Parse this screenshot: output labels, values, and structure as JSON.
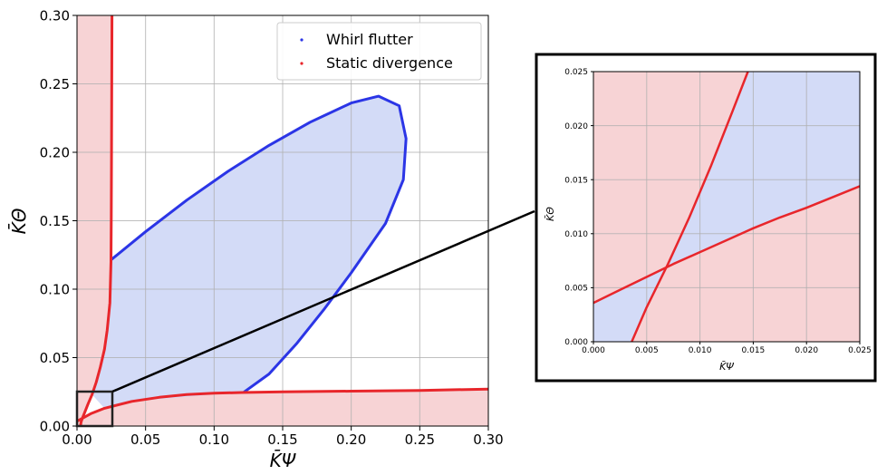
{
  "chart_data": [
    {
      "type": "scatter",
      "xlabel": "K̄Ψ",
      "ylabel": "K̄Θ",
      "xlim": [
        0,
        0.3
      ],
      "ylim": [
        0,
        0.3
      ],
      "xticks": [
        "0.00",
        "0.05",
        "0.10",
        "0.15",
        "0.20",
        "0.25",
        "0.30"
      ],
      "yticks": [
        "0.00",
        "0.05",
        "0.10",
        "0.15",
        "0.20",
        "0.25",
        "0.30"
      ],
      "grid": true,
      "legend_position": "top-right",
      "legend": [
        "Whirl flutter",
        "Static divergence"
      ],
      "colors": {
        "whirl": "#2b35e6",
        "whirl_fill": "#d3dbf7",
        "divergence": "#e8262b",
        "divergence_fill": "#f7d3d5"
      },
      "series": [
        {
          "name": "Whirl flutter",
          "x": [
            0.0255,
            0.05,
            0.08,
            0.11,
            0.14,
            0.17,
            0.2,
            0.22,
            0.235,
            0.24,
            0.238,
            0.225,
            0.2,
            0.18,
            0.16,
            0.14,
            0.122
          ],
          "y": [
            0.122,
            0.142,
            0.165,
            0.186,
            0.205,
            0.222,
            0.236,
            0.241,
            0.234,
            0.21,
            0.18,
            0.148,
            0.112,
            0.085,
            0.06,
            0.038,
            0.025
          ]
        },
        {
          "name": "Static divergence",
          "x": [
            0.0255,
            0.0254,
            0.0252,
            0.025,
            0.0248,
            0.024,
            0.022,
            0.02,
            0.017,
            0.014,
            0.011,
            0.008,
            0.006,
            0.004,
            0.003,
            0.0025
          ],
          "y": [
            0.3,
            0.26,
            0.2,
            0.15,
            0.12,
            0.09,
            0.07,
            0.056,
            0.043,
            0.032,
            0.023,
            0.016,
            0.011,
            0.006,
            0.003,
            0.0
          ]
        },
        {
          "name": "Static divergence",
          "x": [
            0.0,
            0.01,
            0.02,
            0.04,
            0.06,
            0.08,
            0.1,
            0.12,
            0.15,
            0.2,
            0.25,
            0.3
          ],
          "y": [
            0.0035,
            0.009,
            0.013,
            0.018,
            0.021,
            0.023,
            0.024,
            0.0245,
            0.025,
            0.0255,
            0.026,
            0.027
          ]
        }
      ]
    },
    {
      "type": "scatter",
      "xlabel": "K̄Ψ",
      "ylabel": "K̄Θ",
      "xlim": [
        0,
        0.025
      ],
      "ylim": [
        0,
        0.025
      ],
      "xticks": [
        "0.000",
        "0.005",
        "0.010",
        "0.015",
        "0.020",
        "0.025"
      ],
      "yticks": [
        "0.000",
        "0.005",
        "0.010",
        "0.015",
        "0.020",
        "0.025"
      ],
      "grid": true,
      "series": [
        {
          "name": "Static divergence",
          "x": [
            0.0036,
            0.005,
            0.007,
            0.009,
            0.011,
            0.013,
            0.0145
          ],
          "y": [
            0.0,
            0.0032,
            0.0072,
            0.0115,
            0.0162,
            0.0212,
            0.025
          ]
        },
        {
          "name": "Static divergence",
          "x": [
            0.0,
            0.0025,
            0.005,
            0.0075,
            0.01,
            0.0125,
            0.015,
            0.0175,
            0.02,
            0.0225,
            0.025
          ],
          "y": [
            0.0036,
            0.0048,
            0.006,
            0.0072,
            0.0083,
            0.0094,
            0.0105,
            0.0115,
            0.0124,
            0.0134,
            0.0144
          ]
        }
      ]
    }
  ]
}
